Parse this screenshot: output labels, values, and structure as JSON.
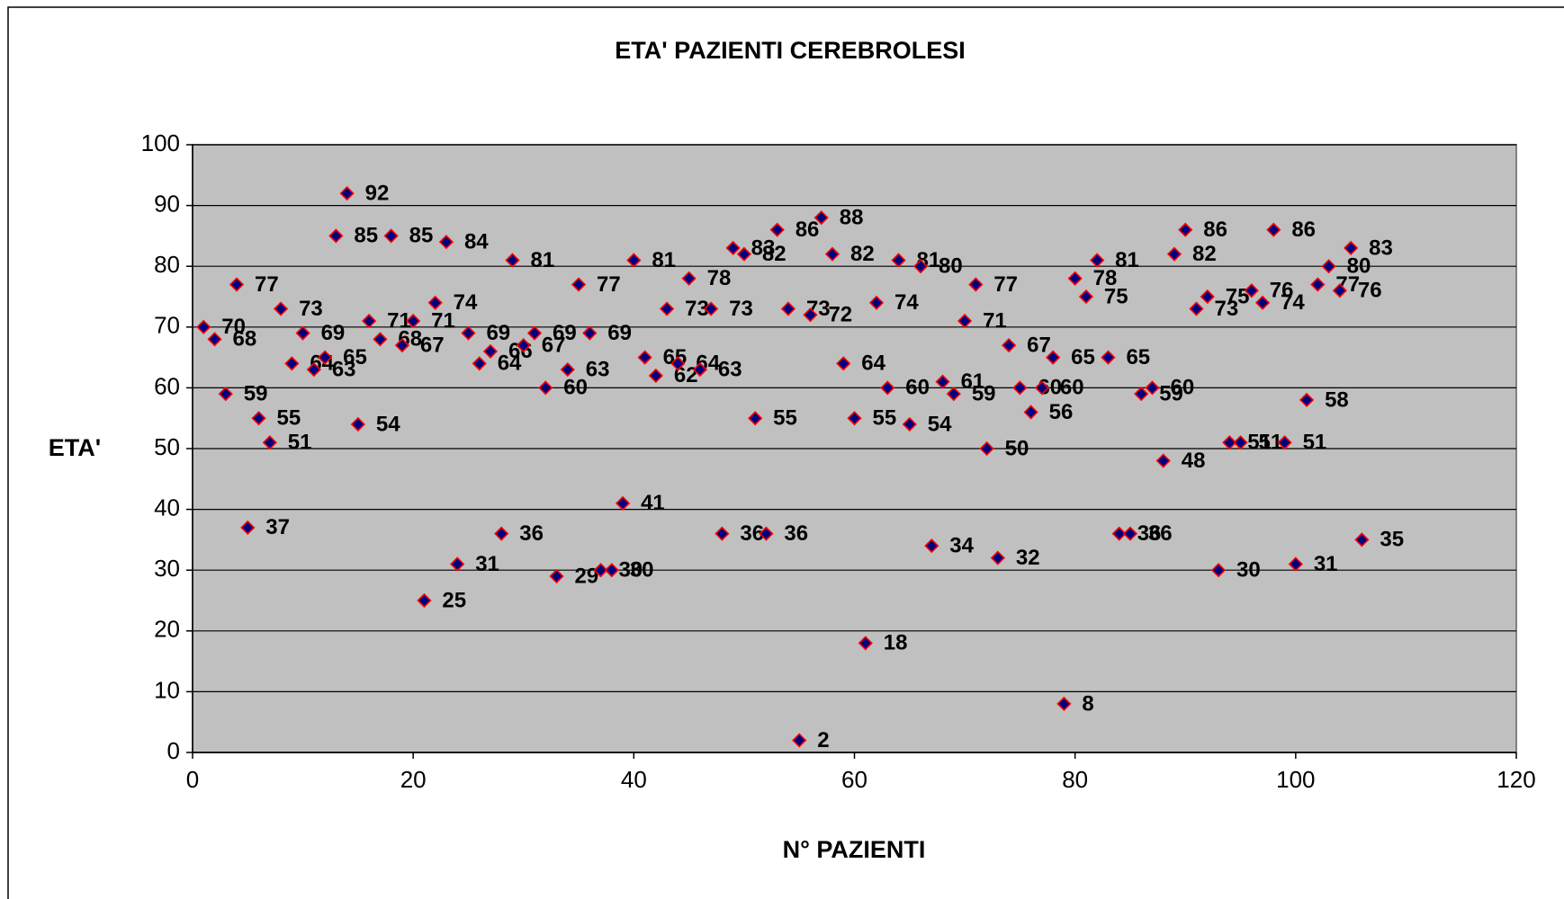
{
  "chart_data": {
    "type": "scatter",
    "title": "ETA' PAZIENTI CEREBROLESI",
    "x_label": "N° PAZIENTI",
    "y_label": "ETA'",
    "x": [
      1,
      2,
      3,
      4,
      5,
      6,
      7,
      8,
      9,
      10,
      11,
      12,
      13,
      14,
      15,
      16,
      17,
      18,
      19,
      20,
      21,
      22,
      23,
      24,
      25,
      26,
      27,
      28,
      29,
      30,
      31,
      32,
      33,
      34,
      35,
      36,
      37,
      38,
      39,
      40,
      41,
      42,
      43,
      44,
      45,
      46,
      47,
      48,
      49,
      50,
      51,
      52,
      53,
      54,
      55,
      56,
      57,
      58,
      59,
      60,
      61,
      62,
      63,
      64,
      65,
      66,
      67,
      68,
      69,
      70,
      71,
      72,
      73,
      74,
      75,
      76,
      77,
      78,
      79,
      80,
      81,
      82,
      83,
      84,
      85,
      86,
      87,
      88,
      89,
      90,
      91,
      92,
      93,
      94,
      95,
      96,
      97,
      98,
      99,
      100,
      101,
      102,
      103,
      104,
      105,
      106
    ],
    "values": [
      70,
      68,
      59,
      77,
      37,
      55,
      51,
      73,
      64,
      69,
      63,
      65,
      85,
      92,
      54,
      71,
      68,
      85,
      67,
      71,
      25,
      74,
      84,
      31,
      69,
      64,
      66,
      36,
      81,
      67,
      69,
      60,
      29,
      63,
      77,
      69,
      30,
      30,
      41,
      81,
      65,
      62,
      73,
      64,
      78,
      63,
      73,
      36,
      83,
      82,
      55,
      36,
      86,
      73,
      2,
      72,
      88,
      82,
      64,
      55,
      18,
      74,
      60,
      81,
      54,
      80,
      34,
      61,
      59,
      71,
      77,
      50,
      32,
      67,
      60,
      56,
      60,
      65,
      8,
      78,
      75,
      81,
      65,
      36,
      36,
      59,
      60,
      48,
      82,
      86,
      73,
      75,
      30,
      51,
      51,
      76,
      74,
      86,
      51,
      31,
      58,
      77,
      80,
      76,
      83,
      35
    ],
    "color": "#000080",
    "edge_color": "#ff0000",
    "xlim": [
      0,
      120
    ],
    "xticks": [
      0,
      20,
      40,
      60,
      80,
      100,
      120
    ],
    "ylim": [
      0,
      100
    ],
    "yticks": [
      0,
      10,
      20,
      30,
      40,
      50,
      60,
      70,
      80,
      90,
      100
    ],
    "grid": true
  }
}
